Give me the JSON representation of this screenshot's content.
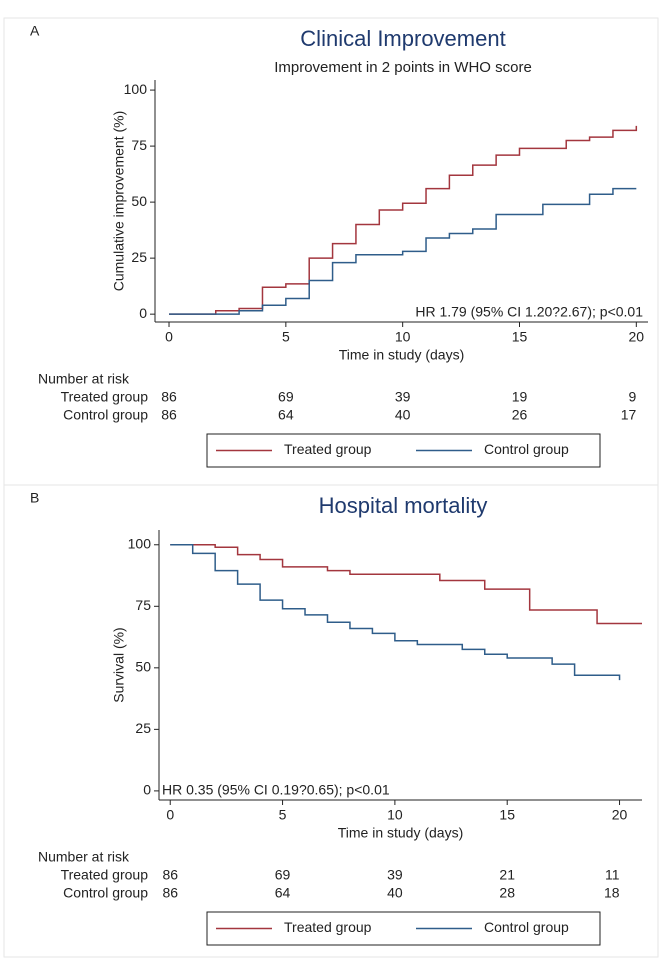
{
  "chart_data": [
    {
      "type": "step",
      "panel_label": "A",
      "title": "Clinical Improvement",
      "subtitle": "Improvement in 2 points in WHO score",
      "xlabel": "Time in study (days)",
      "ylabel": "Cumulative improvement (%)",
      "xlim": [
        -0.6,
        20.5
      ],
      "ylim": [
        -3.5,
        104.5
      ],
      "xticks": [
        0,
        5,
        10,
        15,
        20
      ],
      "yticks": [
        0,
        25,
        50,
        75,
        100
      ],
      "annotation": "HR 1.79 (95% CI 1.20?2.67); p<0.01",
      "series": [
        {
          "name": "Treated group",
          "color": "#a3363e",
          "x": [
            0,
            2,
            3,
            4,
            5,
            6,
            7,
            8,
            9,
            10,
            11,
            12,
            13,
            14,
            15,
            17,
            18,
            19,
            20
          ],
          "values": [
            0,
            1.5,
            2.5,
            12,
            13.5,
            25,
            31.5,
            40,
            46.5,
            49.5,
            56,
            62,
            66.5,
            71,
            74,
            77.5,
            79,
            82,
            84
          ]
        },
        {
          "name": "Control group",
          "color": "#2f5d8a",
          "x": [
            0,
            3,
            4,
            5,
            6,
            7,
            8,
            10,
            11,
            12,
            13,
            14,
            16,
            18,
            19,
            20
          ],
          "values": [
            0,
            1.5,
            4,
            7,
            15,
            23,
            26.5,
            28,
            34,
            36,
            38,
            44.5,
            49,
            53.5,
            56,
            56
          ]
        }
      ],
      "risk_table": {
        "title": "Number at risk",
        "rows": [
          {
            "name": "Treated group",
            "values": [
              86,
              69,
              39,
              19,
              9
            ]
          },
          {
            "name": "Control group",
            "values": [
              86,
              64,
              40,
              26,
              17
            ]
          }
        ]
      }
    },
    {
      "type": "step",
      "panel_label": "B",
      "title": "Hospital mortality",
      "xlabel": "Time in study (days)",
      "ylabel": "Survival (%)",
      "xlim": [
        -0.5,
        21
      ],
      "ylim": [
        -3.7,
        106
      ],
      "xticks": [
        0,
        5,
        10,
        15,
        20
      ],
      "yticks": [
        0,
        25,
        50,
        75,
        100
      ],
      "annotation": "HR 0.35 (95% CI 0.19?0.65); p<0.01",
      "series": [
        {
          "name": "Treated group",
          "color": "#a3363e",
          "x": [
            0,
            2,
            3,
            4,
            5,
            7,
            8,
            12,
            14,
            16,
            19,
            21
          ],
          "values": [
            100,
            99,
            96,
            94,
            91,
            89.5,
            88,
            85.5,
            82,
            73.5,
            68,
            68
          ]
        },
        {
          "name": "Control group",
          "color": "#2f5d8a",
          "x": [
            0,
            1,
            2,
            3,
            4,
            5,
            6,
            7,
            8,
            9,
            10,
            11,
            13,
            14,
            15,
            17,
            18,
            20
          ],
          "values": [
            100,
            96.5,
            89.5,
            84,
            77.5,
            74,
            71.5,
            68.5,
            66,
            64,
            61,
            59.5,
            57.5,
            55.5,
            54,
            51.5,
            47,
            45
          ]
        }
      ],
      "risk_table": {
        "title": "Number at risk",
        "rows": [
          {
            "name": "Treated group",
            "values": [
              86,
              69,
              39,
              21,
              11
            ]
          },
          {
            "name": "Control group",
            "values": [
              86,
              64,
              40,
              28,
              18
            ]
          }
        ]
      }
    }
  ]
}
